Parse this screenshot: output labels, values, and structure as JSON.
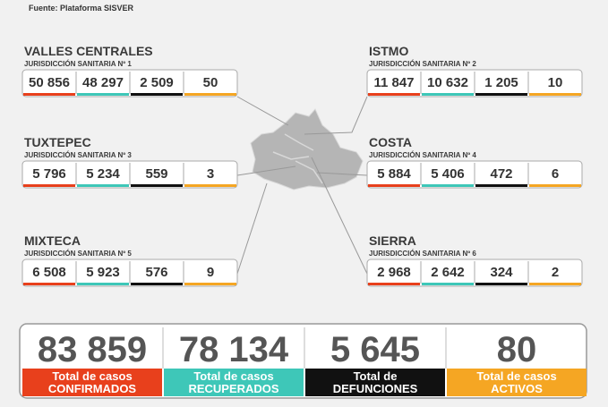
{
  "header": {
    "source": "Fuente: Plataforma SISVER"
  },
  "regions": [
    {
      "name": "VALLES CENTRALES",
      "jurisdiction": "JURISDICCIÓN SANITARIA Nº 1",
      "values": [
        "50 856",
        "48 297",
        "2 509",
        "50"
      ]
    },
    {
      "name": "ISTMO",
      "jurisdiction": "JURISDICCIÓN SANITARIA Nº 2",
      "values": [
        "11 847",
        "10 632",
        "1 205",
        "10"
      ]
    },
    {
      "name": "TUXTEPEC",
      "jurisdiction": "JURISDICCIÓN SANITARIA Nº 3",
      "values": [
        "5 796",
        "5 234",
        "559",
        "3"
      ]
    },
    {
      "name": "COSTA",
      "jurisdiction": "JURISDICCIÓN SANITARIA Nº 4",
      "values": [
        "5 884",
        "5 406",
        "472",
        "6"
      ]
    },
    {
      "name": "MIXTECA",
      "jurisdiction": "JURISDICCIÓN SANITARIA Nº 5",
      "values": [
        "6 508",
        "5 923",
        "576",
        "9"
      ]
    },
    {
      "name": "SIERRA",
      "jurisdiction": "JURISDICCIÓN SANITARIA Nº 6",
      "values": [
        "2 968",
        "2 642",
        "324",
        "2"
      ]
    }
  ],
  "totals": [
    {
      "value": "83 859",
      "label": [
        "Total de casos",
        "CONFIRMADOS"
      ]
    },
    {
      "value": "78 134",
      "label": [
        "Total de casos",
        "RECUPERADOS"
      ]
    },
    {
      "value": "5 645",
      "label": [
        "Total de",
        "DEFUNCIONES"
      ]
    },
    {
      "value": "80",
      "label": [
        "Total de casos",
        "ACTIVOS"
      ]
    }
  ]
}
